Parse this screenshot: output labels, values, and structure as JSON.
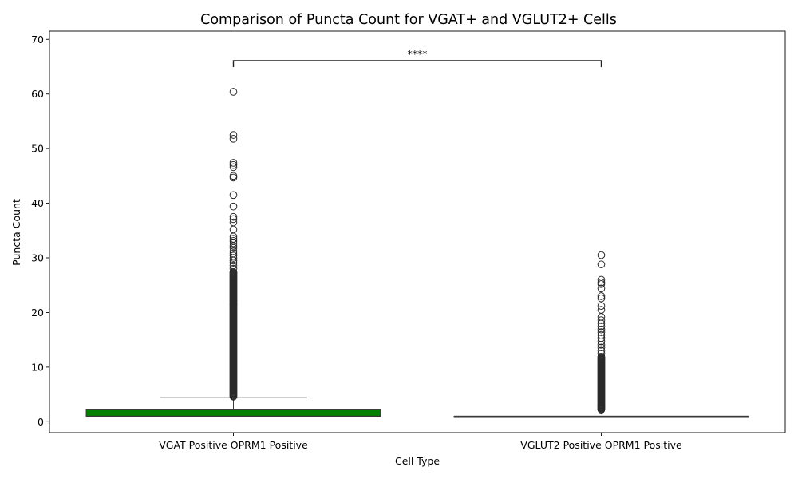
{
  "chart_data": {
    "type": "box",
    "title": "Comparison of Puncta Count for VGAT+ and VGLUT2+ Cells",
    "xlabel": "Cell Type",
    "ylabel": "Puncta Count",
    "ylim": [
      -2,
      71.5
    ],
    "yticks": [
      0,
      10,
      20,
      30,
      40,
      50,
      60,
      70
    ],
    "grid": false,
    "categories": [
      "VGAT Positive OPRM1 Positive",
      "VGLUT2 Positive OPRM1 Positive"
    ],
    "boxes": [
      {
        "category": "VGAT Positive OPRM1 Positive",
        "color": "#008000",
        "whisker_low": 1,
        "q1": 1,
        "median": 1,
        "q3": 2.3,
        "whisker_high": 4.4,
        "outlier_band": [
          4.6,
          27.5
        ],
        "outliers": [
          28,
          28.6,
          29.1,
          29.5,
          30,
          30.4,
          30.8,
          31.2,
          31.8,
          32.2,
          32.7,
          33.1,
          33.5,
          33.9,
          35.2,
          36.5,
          37.1,
          37.5,
          39.4,
          41.5,
          44.7,
          45,
          46.6,
          47,
          47.4,
          51.8,
          52.5,
          60.4
        ]
      },
      {
        "category": "VGLUT2 Positive OPRM1 Positive",
        "color": "#ffffff",
        "whisker_low": 1,
        "q1": 1,
        "median": 1,
        "q3": 1,
        "whisker_high": 1,
        "outlier_band": [
          2.2,
          12
        ],
        "outliers": [
          12.5,
          13,
          13.6,
          14.1,
          14.7,
          15.3,
          15.9,
          16.4,
          16.9,
          17.5,
          18,
          18.6,
          19.2,
          20.5,
          21.2,
          22.6,
          23,
          24.4,
          25.2,
          25.5,
          26,
          28.8,
          30.5
        ]
      }
    ],
    "significance": {
      "label": "****",
      "from": "VGAT Positive OPRM1 Positive",
      "to": "VGLUT2 Positive OPRM1 Positive",
      "y": 66.1,
      "tick_bottom": 64.9
    }
  }
}
